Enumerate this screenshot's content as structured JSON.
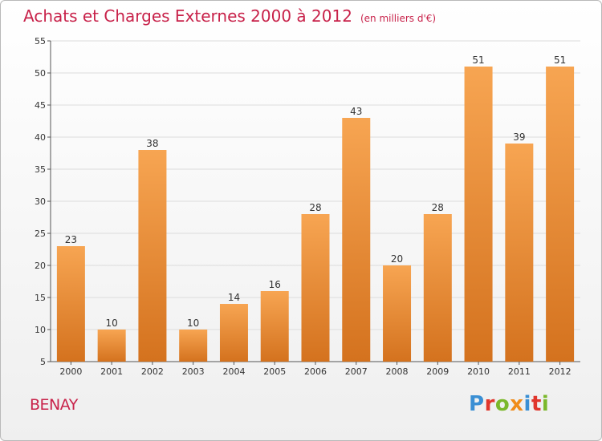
{
  "header": {
    "title": "Achats et Charges Externes 2000 à 2012",
    "subtitle": "(en milliers d'€)"
  },
  "footer": {
    "commune": "BENAY",
    "logo_text": "Proxiti"
  },
  "colors": {
    "title": "#c8224a",
    "bar_top": "#f7a552",
    "bar_bottom": "#d4721e",
    "grid": "#dcdcdc",
    "logo_letters": [
      "#3a8fd4",
      "#e0362c",
      "#7bb82b",
      "#f08c1a",
      "#3a8fd4",
      "#e0362c",
      "#7bb82b"
    ]
  },
  "chart_data": {
    "type": "bar",
    "title": "Achats et Charges Externes 2000 à 2012",
    "subtitle": "(en milliers d'€)",
    "xlabel": "",
    "ylabel": "",
    "categories": [
      "2000",
      "2001",
      "2002",
      "2003",
      "2004",
      "2005",
      "2006",
      "2007",
      "2008",
      "2009",
      "2010",
      "2011",
      "2012"
    ],
    "values": [
      23,
      10,
      38,
      10,
      14,
      16,
      28,
      43,
      20,
      28,
      51,
      39,
      51
    ],
    "ylim": [
      5,
      55
    ],
    "yticks": [
      5,
      10,
      15,
      20,
      25,
      30,
      35,
      40,
      45,
      50,
      55
    ],
    "grid": true,
    "legend": "none",
    "data_labels": true
  }
}
